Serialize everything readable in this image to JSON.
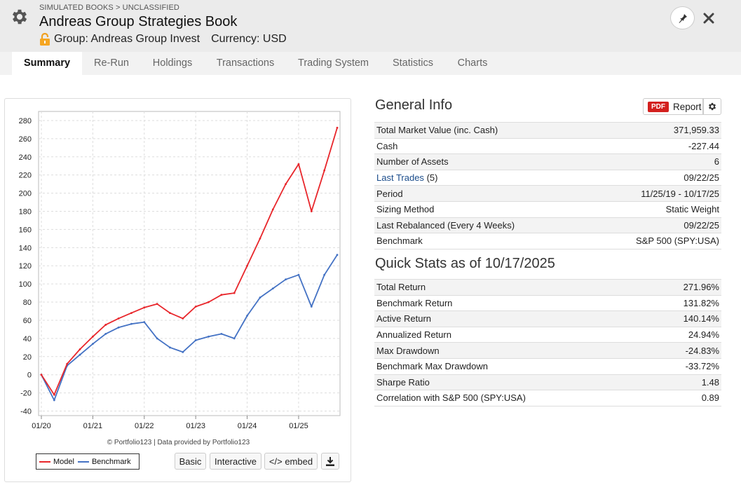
{
  "header": {
    "breadcrumb": "SIMULATED BOOKS > UNCLASSIFIED",
    "title": "Andreas Group Strategies Book",
    "group": "Group: Andreas Group Invest",
    "currency": "Currency: USD",
    "icons": [
      "gear-icon",
      "lock-icon",
      "pin-icon",
      "close-icon"
    ]
  },
  "tabs": [
    {
      "label": "Summary",
      "active": true
    },
    {
      "label": "Re-Run"
    },
    {
      "label": "Holdings"
    },
    {
      "label": "Transactions"
    },
    {
      "label": "Trading System"
    },
    {
      "label": "Statistics"
    },
    {
      "label": "Charts"
    }
  ],
  "chart": {
    "credit": "© Portfolio123 | Data provided by Portfolio123",
    "legend": {
      "model": "Model",
      "benchmark": "Benchmark"
    },
    "buttons": {
      "basic": "Basic",
      "interactive": "Interactive",
      "embed": "</> embed"
    }
  },
  "chart_data": {
    "type": "line",
    "x": [
      "01/20",
      "04/20",
      "07/20",
      "10/20",
      "01/21",
      "04/21",
      "07/21",
      "10/21",
      "01/22",
      "04/22",
      "07/22",
      "10/22",
      "01/23",
      "04/23",
      "07/23",
      "10/23",
      "01/24",
      "04/24",
      "07/24",
      "10/24",
      "01/25",
      "04/25",
      "07/25",
      "10/25"
    ],
    "x_ticks": [
      "01/20",
      "01/21",
      "01/22",
      "01/23",
      "01/24",
      "01/25"
    ],
    "y_ticks": [
      -40,
      -20,
      0,
      20,
      40,
      60,
      80,
      100,
      120,
      140,
      160,
      180,
      200,
      220,
      240,
      260,
      280
    ],
    "ylim": [
      -45,
      290
    ],
    "grid": true,
    "legend_position": "bottom-left",
    "series": [
      {
        "name": "Model",
        "color": "#e8262b",
        "values": [
          0,
          -22,
          12,
          28,
          42,
          55,
          62,
          68,
          74,
          78,
          68,
          62,
          75,
          80,
          88,
          90,
          120,
          150,
          182,
          210,
          232,
          180,
          225,
          272
        ]
      },
      {
        "name": "Benchmark",
        "color": "#4472c4",
        "values": [
          0,
          -28,
          10,
          22,
          34,
          45,
          52,
          56,
          58,
          40,
          30,
          25,
          38,
          42,
          45,
          40,
          65,
          85,
          95,
          105,
          110,
          75,
          110,
          132
        ]
      }
    ]
  },
  "general_info": {
    "title": "General Info",
    "report_label": "Report",
    "pdf_label": "PDF",
    "rows": [
      {
        "label": "Total Market Value (inc. Cash)",
        "value": "371,959.33"
      },
      {
        "label": "Cash",
        "value": "-227.44"
      },
      {
        "label": "Number of Assets",
        "value": "6"
      },
      {
        "label": "Last Trades",
        "extra": "(5)",
        "value": "09/22/25",
        "link": true
      },
      {
        "label": "Period",
        "value": "11/25/19 - 10/17/25"
      },
      {
        "label": "Sizing Method",
        "value": "Static Weight"
      },
      {
        "label": "Last Rebalanced (Every 4 Weeks)",
        "value": "09/22/25"
      },
      {
        "label": "Benchmark",
        "value": "S&P 500 (SPY:USA)"
      }
    ]
  },
  "quick_stats": {
    "title": "Quick Stats as of 10/17/2025",
    "rows": [
      {
        "label": "Total Return",
        "value": "271.96%"
      },
      {
        "label": "Benchmark Return",
        "value": "131.82%"
      },
      {
        "label": "Active Return",
        "value": "140.14%"
      },
      {
        "label": "Annualized Return",
        "value": "24.94%"
      },
      {
        "label": "Max Drawdown",
        "value": "-24.83%",
        "negative": true
      },
      {
        "label": "Benchmark Max Drawdown",
        "value": "-33.72%",
        "negative": true
      },
      {
        "label": "Sharpe Ratio",
        "value": "1.48"
      },
      {
        "label": "Correlation with S&P 500 (SPY:USA)",
        "value": "0.89"
      }
    ]
  }
}
